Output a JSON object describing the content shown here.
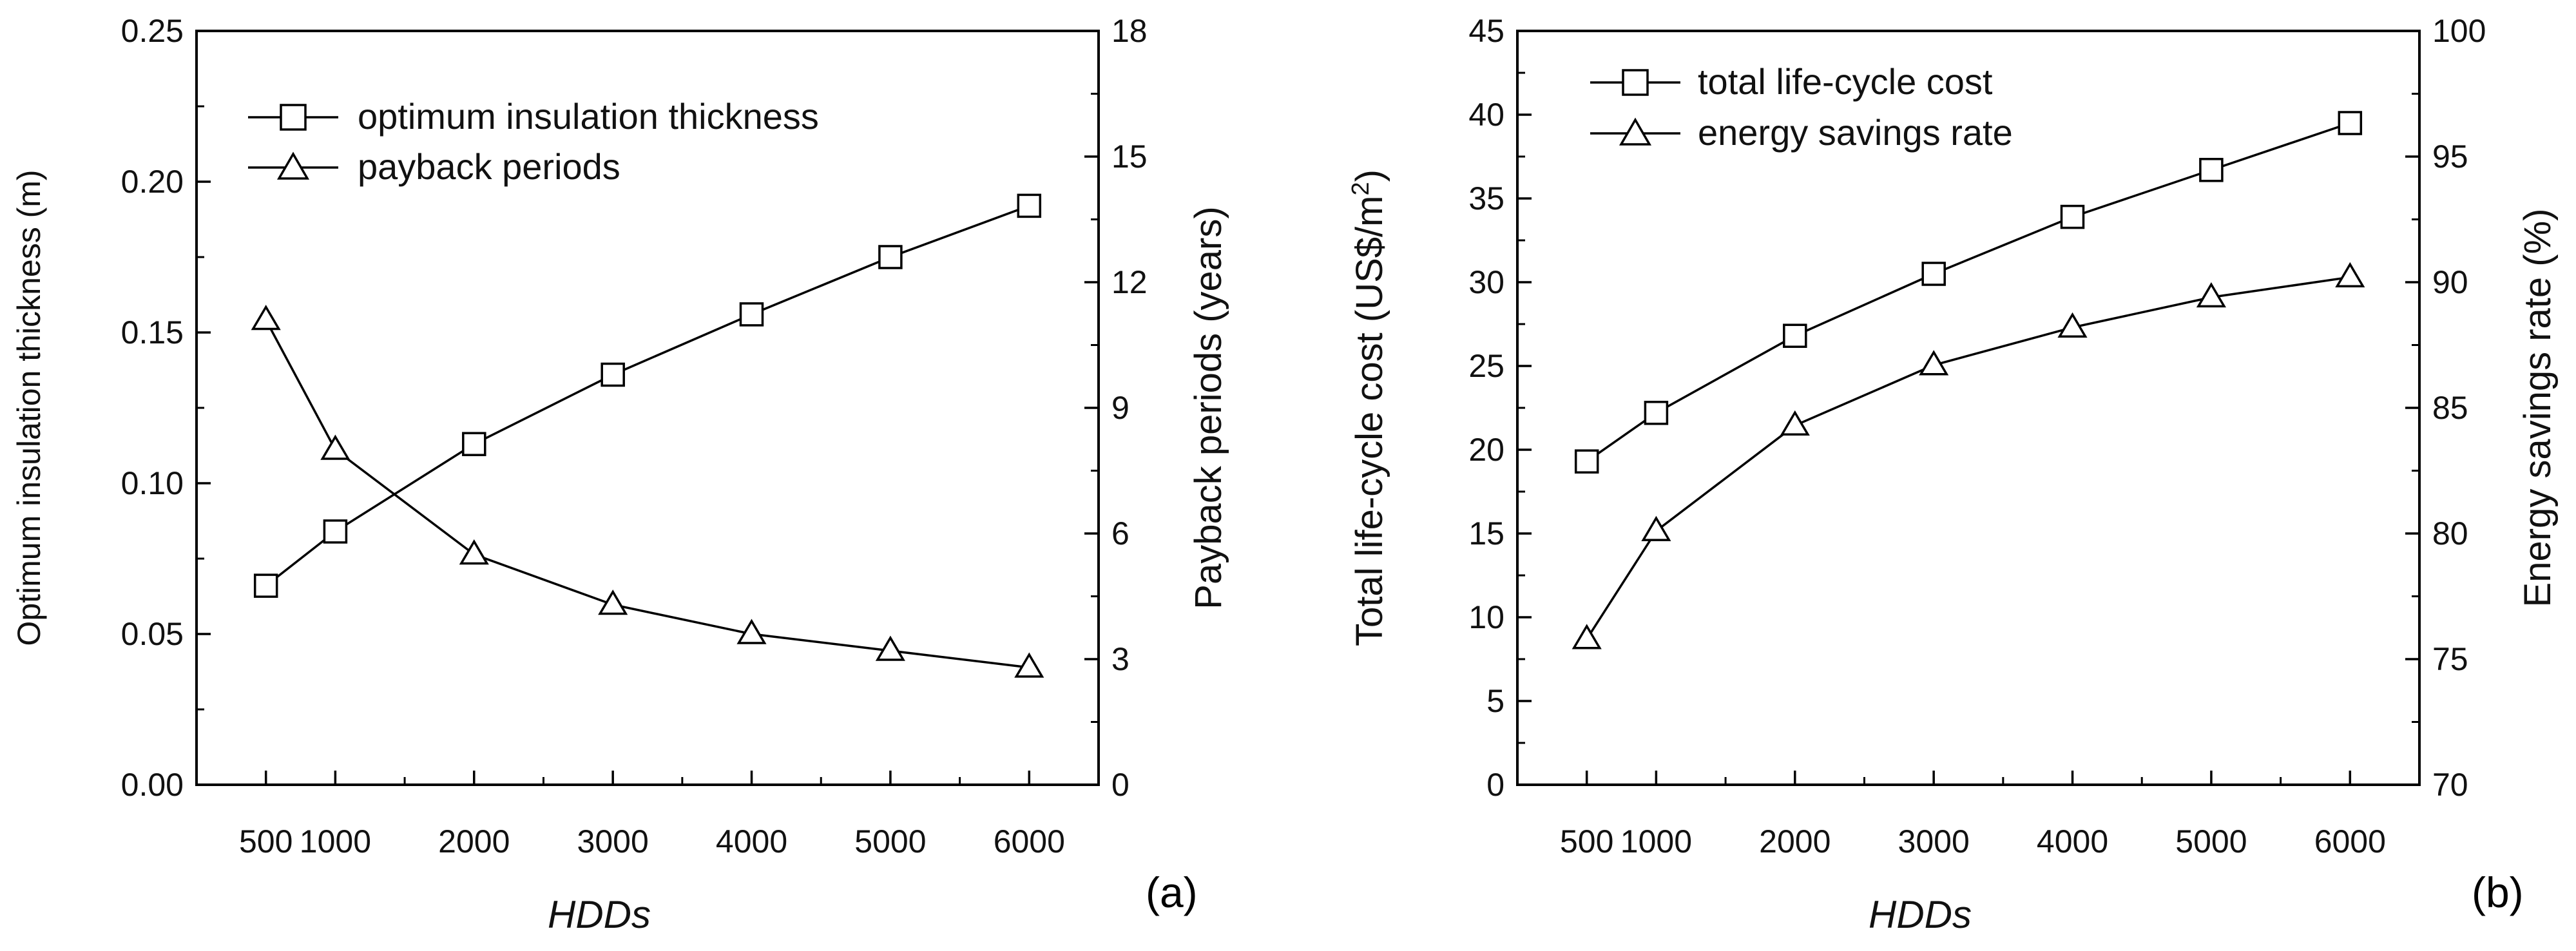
{
  "chart_data": [
    {
      "id": "a",
      "type": "line",
      "panel_label": "(a)",
      "xlabel": "HDDs",
      "x": [
        500,
        1000,
        2000,
        3000,
        4000,
        5000,
        6000
      ],
      "xticks": [
        500,
        1000,
        2000,
        3000,
        4000,
        5000,
        6000
      ],
      "xlim": [
        0,
        6500
      ],
      "left_axis": {
        "label": "Optimum insulation thickness (m)",
        "ylim": [
          0,
          0.25
        ],
        "ticks": [
          "0.00",
          "0.05",
          "0.10",
          "0.15",
          "0.20",
          "0.25"
        ]
      },
      "right_axis": {
        "label": "Payback periods (years)",
        "ylim": [
          0,
          18
        ],
        "ticks": [
          "0",
          "3",
          "6",
          "9",
          "12",
          "15",
          "18"
        ]
      },
      "legend_position": "top-left",
      "series": [
        {
          "name": "optimum insulation thickness",
          "axis": "left",
          "marker": "square",
          "values": [
            0.066,
            0.084,
            0.113,
            0.136,
            0.156,
            0.175,
            0.192
          ]
        },
        {
          "name": "payback periods",
          "axis": "right",
          "marker": "triangle",
          "values": [
            11.1,
            8.0,
            5.5,
            4.3,
            3.6,
            3.2,
            2.8
          ]
        }
      ]
    },
    {
      "id": "b",
      "type": "line",
      "panel_label": "(b)",
      "xlabel": "HDDs",
      "x": [
        500,
        1000,
        2000,
        3000,
        4000,
        5000,
        6000
      ],
      "xticks": [
        500,
        1000,
        2000,
        3000,
        4000,
        5000,
        6000
      ],
      "xlim": [
        0,
        6500
      ],
      "left_axis": {
        "label": "Total life-cycle cost (US$/m",
        "label_superscript": "2",
        "label_suffix": ")",
        "ylim": [
          0,
          45
        ],
        "ticks": [
          "0",
          "5",
          "10",
          "15",
          "20",
          "25",
          "30",
          "35",
          "40",
          "45"
        ]
      },
      "right_axis": {
        "label": "Energy savings rate (%)",
        "ylim": [
          70,
          100
        ],
        "ticks": [
          "70",
          "75",
          "80",
          "85",
          "90",
          "95",
          "100"
        ]
      },
      "legend_position": "top-left",
      "series": [
        {
          "name": "total life-cycle cost",
          "axis": "left",
          "marker": "square",
          "values": [
            19.3,
            22.2,
            26.8,
            30.5,
            33.9,
            36.7,
            39.5
          ]
        },
        {
          "name": "energy savings rate",
          "axis": "right",
          "marker": "triangle",
          "values": [
            75.8,
            80.1,
            84.3,
            86.7,
            88.2,
            89.4,
            90.2
          ]
        }
      ]
    }
  ]
}
